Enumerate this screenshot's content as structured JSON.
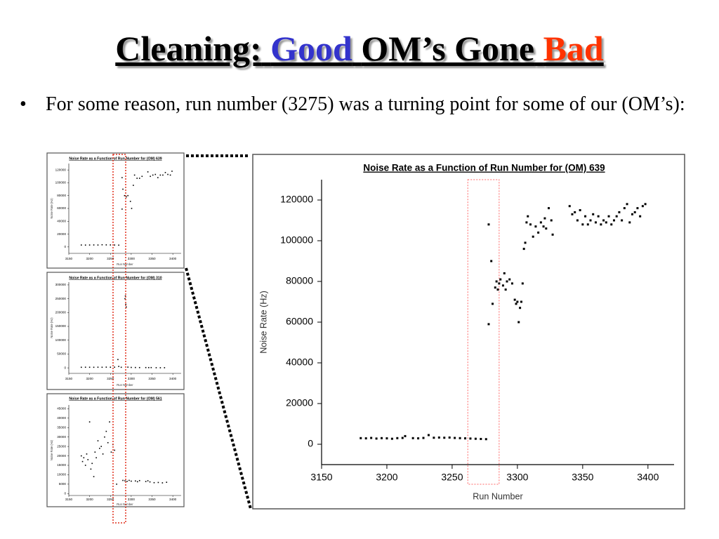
{
  "slide": {
    "title_parts": [
      "Cleaning:",
      "Good",
      "OM’s Gone",
      "Bad"
    ],
    "bullet": "For some reason, run number (3275) was a turning point for some of our (OM’s):"
  },
  "chart_data": [
    {
      "type": "scatter",
      "title": "Noise Rate as a Function of Run Number for (OM) 639",
      "x_label": "Run Number",
      "y_label": "Noise Rate (Hz)",
      "color": "#000000",
      "xlim": [
        3150,
        3420
      ],
      "xticks": [
        3150,
        3200,
        3250,
        3300,
        3350,
        3400
      ],
      "ylim": [
        -10000,
        130000
      ],
      "yticks": [
        0,
        20000,
        40000,
        60000,
        80000,
        100000,
        120000
      ],
      "x": [
        3180,
        3190,
        3200,
        3210,
        3220,
        3230,
        3240,
        3250,
        3260,
        3270,
        3278,
        3278,
        3280,
        3284,
        3288,
        3292,
        3298,
        3301,
        3305,
        3308,
        3314,
        3320,
        3326,
        3340,
        3346,
        3352,
        3358,
        3364,
        3370,
        3376,
        3382,
        3388,
        3394,
        3398
      ],
      "y": [
        3000,
        2900,
        3000,
        3100,
        3000,
        3400,
        3200,
        3100,
        3000,
        2800,
        59000,
        108000,
        90000,
        80000,
        78000,
        80000,
        71000,
        60000,
        96000,
        112000,
        107000,
        107000,
        110000,
        117000,
        110000,
        112000,
        113000,
        108000,
        112000,
        112000,
        116000,
        113000,
        112000,
        118000
      ]
    },
    {
      "type": "scatter",
      "title": "Noise Rate as a Function of Run Number for (OM) 310",
      "x_label": "Run Number",
      "y_label": "Noise Rate (Hz)",
      "color": "#000000",
      "xlim": [
        3150,
        3420
      ],
      "xticks": [
        3150,
        3200,
        3250,
        3300,
        3350,
        3400
      ],
      "ylim": [
        -20000,
        310000
      ],
      "yticks": [
        0,
        50000,
        100000,
        150000,
        200000,
        250000,
        300000
      ],
      "x": [
        3180,
        3190,
        3200,
        3210,
        3220,
        3230,
        3240,
        3250,
        3260,
        3268,
        3270,
        3276,
        3285,
        3286,
        3287,
        3288,
        3292,
        3300,
        3310,
        3320,
        3335,
        3342,
        3348,
        3360,
        3370,
        3380
      ],
      "y": [
        2000,
        2200,
        2100,
        2000,
        2300,
        2100,
        2500,
        2200,
        2400,
        30000,
        5000,
        2000,
        250000,
        260000,
        230000,
        220000,
        2500,
        1500,
        1200,
        1000,
        1000,
        900,
        1000,
        500,
        400,
        500
      ]
    },
    {
      "type": "scatter",
      "title": "Noise Rate as a Function of Run Number for (OM) 561",
      "x_label": "Run Number",
      "y_label": "Noise Rate (Hz)",
      "color": "#000000",
      "xlim": [
        3150,
        3420
      ],
      "xticks": [
        3150,
        3200,
        3250,
        3300,
        3350,
        3400
      ],
      "ylim": [
        -1000,
        47000
      ],
      "yticks": [
        0,
        5000,
        10000,
        15000,
        20000,
        25000,
        30000,
        35000,
        40000,
        45000
      ],
      "x": [
        3180,
        3183,
        3186,
        3190,
        3193,
        3196,
        3200,
        3203,
        3206,
        3210,
        3213,
        3216,
        3220,
        3224,
        3228,
        3232,
        3236,
        3240,
        3244,
        3248,
        3252,
        3256,
        3260,
        3265,
        3280,
        3285,
        3290,
        3295,
        3300,
        3310,
        3315,
        3320,
        3335,
        3340,
        3345,
        3355,
        3365,
        3375,
        3385
      ],
      "y": [
        20000,
        17000,
        19000,
        15000,
        21000,
        18000,
        38000,
        13000,
        16000,
        9000,
        22000,
        19000,
        28000,
        24000,
        25000,
        21000,
        30000,
        33000,
        27000,
        38000,
        22000,
        26000,
        23000,
        5000,
        7000,
        6800,
        6500,
        7000,
        6600,
        6700,
        6300,
        6900,
        6400,
        6800,
        6200,
        5800,
        5900,
        5700,
        6000
      ]
    },
    {
      "type": "scatter",
      "title": "Noise Rate as a Function of Run Number for (OM) 639",
      "x_label": "Run Number",
      "y_label": "Noise Rate (Hz)",
      "color": "#000000",
      "xlim": [
        3150,
        3420
      ],
      "xticks": [
        3150,
        3200,
        3250,
        3300,
        3350,
        3400
      ],
      "ylim": [
        -10000,
        130000
      ],
      "yticks": [
        0,
        20000,
        40000,
        60000,
        80000,
        100000,
        120000
      ],
      "highlight_xrange": [
        3262,
        3286
      ],
      "highlight_color": "#ff6666",
      "x": [
        3180,
        3184,
        3188,
        3192,
        3196,
        3200,
        3204,
        3208,
        3212,
        3214,
        3220,
        3224,
        3228,
        3232,
        3236,
        3240,
        3244,
        3248,
        3252,
        3256,
        3260,
        3264,
        3268,
        3272,
        3276,
        3278,
        3278,
        3280,
        3281,
        3283,
        3284,
        3285,
        3286,
        3287,
        3289,
        3290,
        3291,
        3292,
        3294,
        3296,
        3298,
        3299,
        3300,
        3301,
        3302,
        3303,
        3304,
        3305,
        3306,
        3307,
        3308,
        3310,
        3312,
        3314,
        3316,
        3318,
        3320,
        3321,
        3322,
        3324,
        3326,
        3327,
        3340,
        3342,
        3344,
        3346,
        3348,
        3350,
        3352,
        3354,
        3356,
        3358,
        3360,
        3362,
        3364,
        3366,
        3368,
        3370,
        3372,
        3374,
        3376,
        3378,
        3380,
        3382,
        3384,
        3386,
        3388,
        3390,
        3392,
        3394,
        3396,
        3398
      ],
      "y": [
        3000,
        2900,
        3100,
        2800,
        3000,
        2900,
        2700,
        3000,
        3100,
        4000,
        3000,
        2900,
        3100,
        4500,
        3200,
        3300,
        3200,
        3300,
        3100,
        3000,
        2900,
        2800,
        2700,
        2600,
        2500,
        59000,
        108000,
        90000,
        69000,
        77000,
        80000,
        76000,
        79000,
        81000,
        78000,
        84000,
        76000,
        80000,
        81000,
        79000,
        71000,
        69000,
        70000,
        60000,
        67000,
        70000,
        79000,
        96000,
        99000,
        109000,
        112000,
        108000,
        102000,
        107000,
        104000,
        109000,
        107000,
        111000,
        106000,
        116000,
        110000,
        103000,
        117000,
        113000,
        114000,
        110000,
        115000,
        108000,
        112000,
        108000,
        110000,
        113000,
        109000,
        112000,
        108000,
        110000,
        109000,
        112000,
        108000,
        110000,
        112000,
        114000,
        110000,
        116000,
        118000,
        109000,
        113000,
        114000,
        116000,
        112000,
        117000,
        118000
      ]
    }
  ]
}
